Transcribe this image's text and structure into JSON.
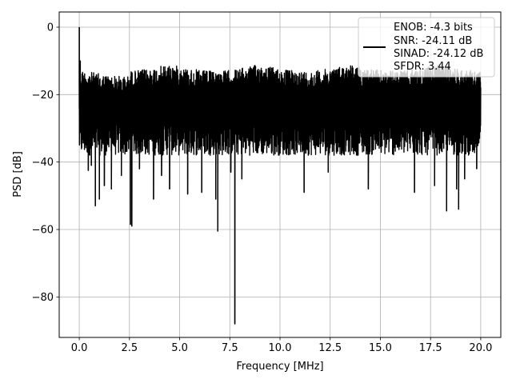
{
  "chart_data": {
    "type": "line",
    "title": "",
    "xlabel": "Frequency [MHz]",
    "ylabel": "PSD [dB]",
    "xlim": [
      -1.0,
      21.0
    ],
    "ylim": [
      -92.0,
      4.5
    ],
    "xticks": [
      0.0,
      2.5,
      5.0,
      7.5,
      10.0,
      12.5,
      15.0,
      17.5,
      20.0
    ],
    "xtick_labels": [
      "0.0",
      "2.5",
      "5.0",
      "7.5",
      "10.0",
      "12.5",
      "15.0",
      "17.5",
      "20.0"
    ],
    "yticks": [
      0,
      -20,
      -40,
      -60,
      -80
    ],
    "ytick_labels": [
      "0",
      "−20",
      "−40",
      "−60",
      "−80"
    ],
    "grid": true,
    "legend_position": "upper-right",
    "legend": {
      "line_label": "",
      "entries": [
        "ENOB: -4.3 bits",
        "SNR: -24.11 dB",
        "SINAD: -24.12 dB",
        "SFDR: 3.44"
      ]
    },
    "series": [
      {
        "color": "#000000",
        "x_range": [
          0.0,
          20.0
        ],
        "noise_floor_range_db": [
          -38.0,
          -11.0
        ],
        "peaks": [
          {
            "x": 0.0,
            "y": 0.0
          },
          {
            "x": 0.05,
            "y": -10.0
          }
        ],
        "notable_dips": [
          {
            "x": 0.45,
            "y": -42.5
          },
          {
            "x": 0.6,
            "y": -41.0
          },
          {
            "x": 0.8,
            "y": -53.0
          },
          {
            "x": 1.0,
            "y": -51.0
          },
          {
            "x": 1.25,
            "y": -47.0
          },
          {
            "x": 1.6,
            "y": -48.0
          },
          {
            "x": 2.1,
            "y": -44.0
          },
          {
            "x": 2.55,
            "y": -58.5
          },
          {
            "x": 2.62,
            "y": -59.0
          },
          {
            "x": 3.0,
            "y": -42.0
          },
          {
            "x": 3.7,
            "y": -51.0
          },
          {
            "x": 4.1,
            "y": -44.0
          },
          {
            "x": 4.5,
            "y": -48.0
          },
          {
            "x": 5.4,
            "y": -49.5
          },
          {
            "x": 6.1,
            "y": -49.0
          },
          {
            "x": 6.8,
            "y": -51.0
          },
          {
            "x": 6.9,
            "y": -60.5
          },
          {
            "x": 7.55,
            "y": -43.0
          },
          {
            "x": 7.75,
            "y": -88.0
          },
          {
            "x": 8.1,
            "y": -45.0
          },
          {
            "x": 11.2,
            "y": -49.0
          },
          {
            "x": 12.4,
            "y": -43.0
          },
          {
            "x": 14.4,
            "y": -48.0
          },
          {
            "x": 16.7,
            "y": -49.0
          },
          {
            "x": 17.7,
            "y": -47.0
          },
          {
            "x": 18.3,
            "y": -54.5
          },
          {
            "x": 18.8,
            "y": -48.0
          },
          {
            "x": 18.9,
            "y": -54.0
          },
          {
            "x": 19.2,
            "y": -45.0
          },
          {
            "x": 19.8,
            "y": -42.0
          }
        ]
      }
    ]
  }
}
